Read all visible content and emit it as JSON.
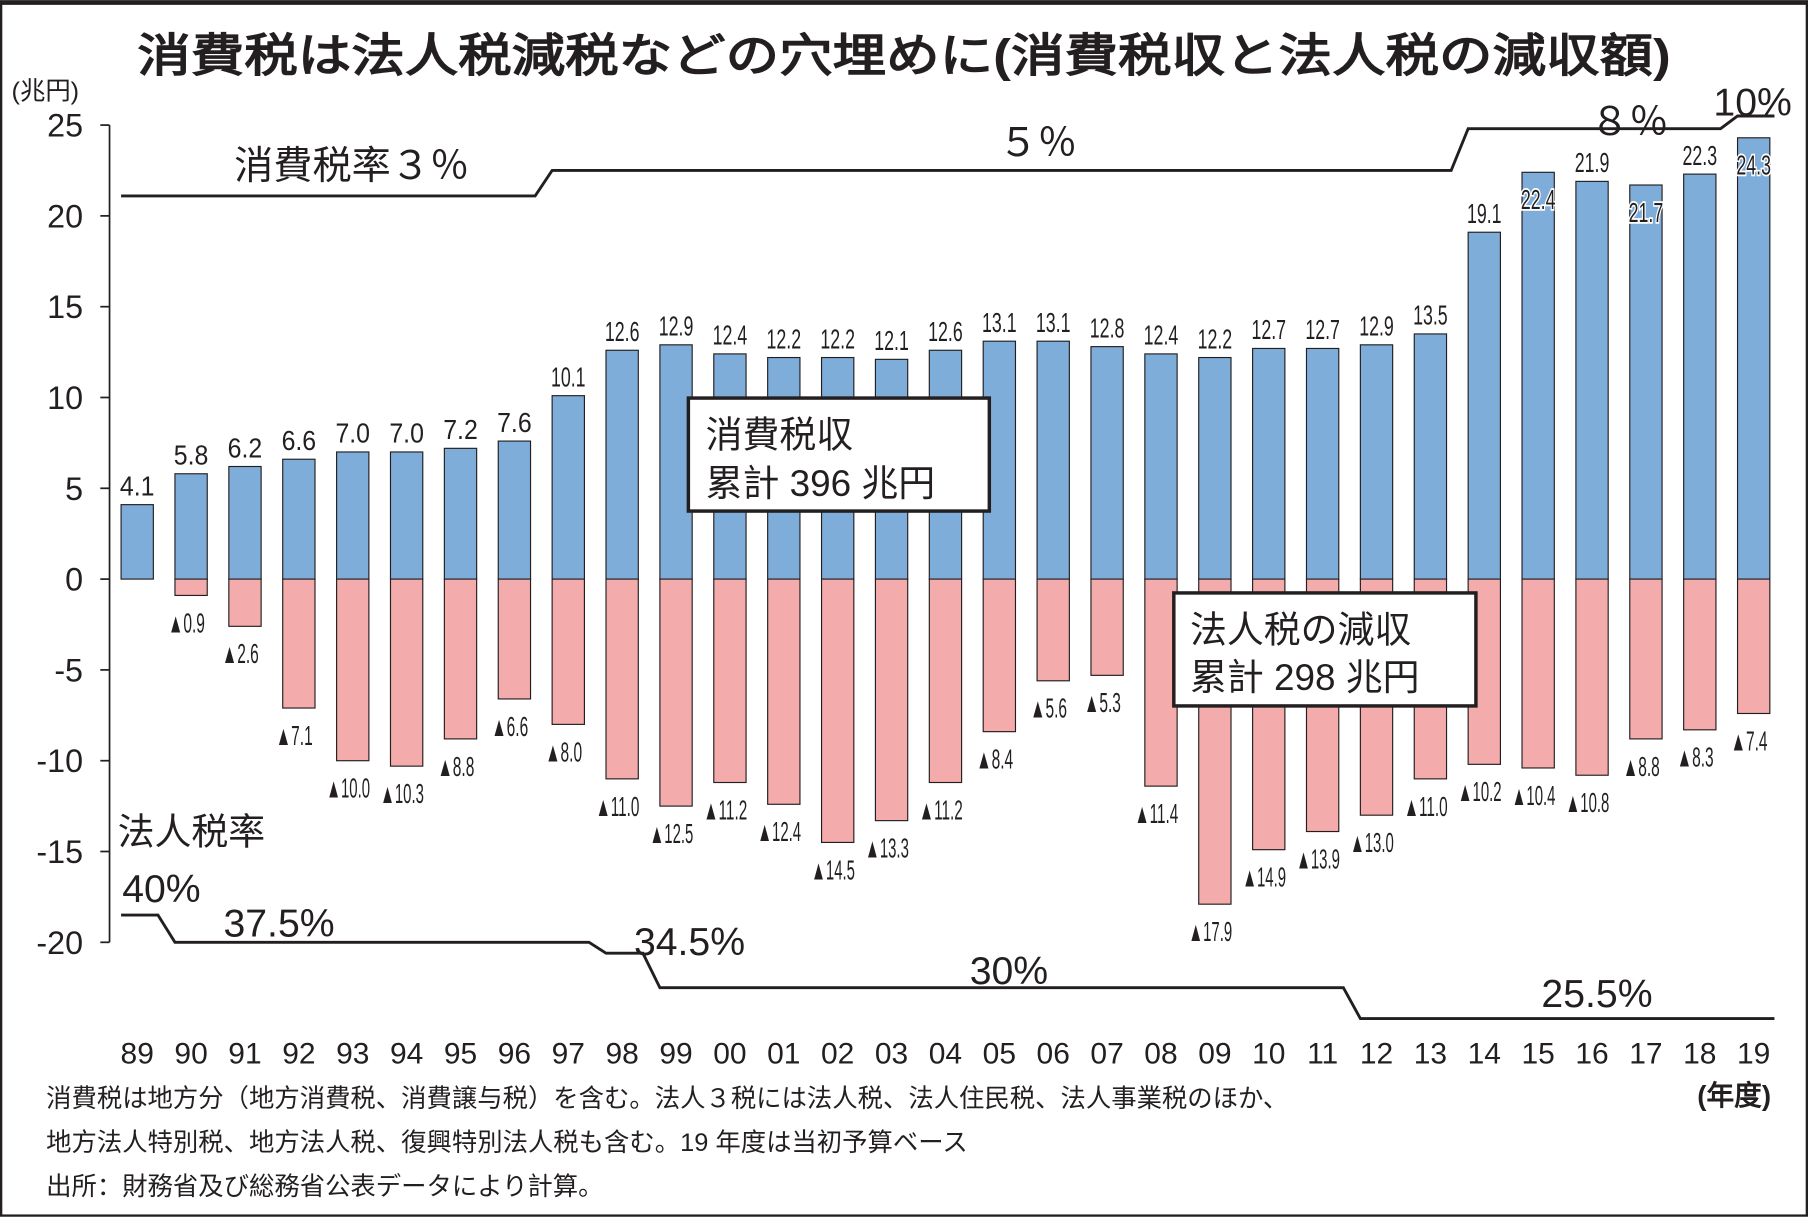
{
  "chart_data": {
    "type": "bar",
    "title": "消費税は法人税減税などの穴埋めに(消費税収と法人税の減収額)",
    "ylabel": "(兆円)",
    "xlabel": "(年度)",
    "ylim": [
      -20,
      25
    ],
    "yticks": [
      "25",
      "20",
      "15",
      "10",
      "5",
      "0",
      "-5",
      "-10",
      "-15",
      "-20"
    ],
    "grid": false,
    "categories": [
      "89",
      "90",
      "91",
      "92",
      "93",
      "94",
      "95",
      "96",
      "97",
      "98",
      "99",
      "00",
      "01",
      "02",
      "03",
      "04",
      "05",
      "06",
      "07",
      "08",
      "09",
      "10",
      "11",
      "12",
      "13",
      "14",
      "15",
      "16",
      "17",
      "18",
      "19"
    ],
    "colors": {
      "consumption": "#7fadda",
      "corporate": "#f4abab"
    },
    "series": [
      {
        "key": "consumption",
        "values": [
          4.1,
          5.8,
          6.2,
          6.6,
          7.0,
          7.0,
          7.2,
          7.6,
          10.1,
          12.6,
          12.9,
          12.4,
          12.2,
          12.2,
          12.1,
          12.6,
          13.1,
          13.1,
          12.8,
          12.4,
          12.2,
          12.7,
          12.7,
          12.9,
          13.5,
          19.1,
          22.4,
          21.9,
          21.7,
          22.3,
          24.3
        ],
        "labels": [
          "4.1",
          "5.8",
          "6.2",
          "6.6",
          "7.0",
          "7.0",
          "7.2",
          "7.6",
          "10.1",
          "12.6",
          "12.9",
          "12.4",
          "12.2",
          "12.2",
          "12.1",
          "12.6",
          "13.1",
          "13.1",
          "12.8",
          "12.4",
          "12.2",
          "12.7",
          "12.7",
          "12.9",
          "13.5",
          "19.1",
          "22.4",
          "21.9",
          "21.7",
          "22.3",
          "24.3"
        ]
      },
      {
        "key": "corporate",
        "values": [
          0,
          -0.9,
          -2.6,
          -7.1,
          -10.0,
          -10.3,
          -8.8,
          -6.6,
          -8.0,
          -11.0,
          -12.5,
          -11.2,
          -12.4,
          -14.5,
          -13.3,
          -11.2,
          -8.4,
          -5.6,
          -5.3,
          -11.4,
          -17.9,
          -14.9,
          -13.9,
          -13.0,
          -11.0,
          -10.2,
          -10.4,
          -10.8,
          -8.8,
          -8.3,
          -7.4
        ],
        "labels": [
          "",
          "▲0.9",
          "▲2.6",
          "▲7.1",
          "▲10.0",
          "▲10.3",
          "▲8.8",
          "▲6.6",
          "▲8.0",
          "▲11.0",
          "▲12.5",
          "▲11.2",
          "▲12.4",
          "▲14.5",
          "▲13.3",
          "▲11.2",
          "▲8.4",
          "▲5.6",
          "▲5.3",
          "▲11.4",
          "▲17.9",
          "▲14.9",
          "▲13.9",
          "▲13.0",
          "▲11.0",
          "▲10.2",
          "▲10.4",
          "▲10.8",
          "▲8.8",
          "▲8.3",
          "▲7.4"
        ]
      }
    ],
    "annotations": {
      "consumption_total": [
        "消費税収",
        "累計 396 兆円"
      ],
      "corporate_total": [
        "法人税の減収",
        "累計 298 兆円"
      ]
    },
    "consumption_tax_rate": {
      "label": "消費税率３％",
      "steps": [
        {
          "from": "89",
          "to": "96",
          "label": "消費税率３％"
        },
        {
          "from": "97",
          "to": "13",
          "label": "５％"
        },
        {
          "from": "14",
          "to": "18",
          "label": "８％"
        },
        {
          "from": "19",
          "to": "19",
          "label": "10%"
        }
      ]
    },
    "corporate_tax_rate": {
      "label": "法人税率",
      "steps": [
        {
          "from": "89",
          "to": "89",
          "label": "40%"
        },
        {
          "from": "90",
          "to": "97",
          "label": "37.5%"
        },
        {
          "from": "98",
          "to": "98",
          "label": "34.5%"
        },
        {
          "from": "99",
          "to": "11",
          "label": "30%"
        },
        {
          "from": "12",
          "to": "19",
          "label": "25.5%"
        }
      ]
    }
  },
  "footnotes": [
    "消費税は地方分（地方消費税、消費譲与税）を含む。法人３税には法人税、法人住民税、法人事業税のほか、",
    "地方法人特別税、地方法人税、復興特別法人税も含む。19 年度は当初予算ベース",
    "出所：財務省及び総務省公表データにより計算。"
  ]
}
